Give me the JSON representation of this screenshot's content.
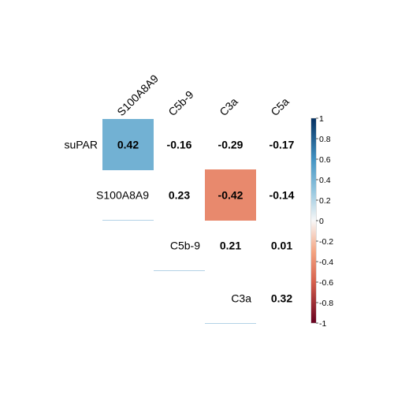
{
  "chart_data": {
    "type": "heatmap",
    "variant": "correlation-matrix-upper",
    "row_labels": [
      "suPAR",
      "S100A8A9",
      "C5b-9",
      "C3a"
    ],
    "col_labels": [
      "S100A8A9",
      "C5b-9",
      "C3a",
      "C5a"
    ],
    "cells": [
      {
        "row": "suPAR",
        "col": "S100A8A9",
        "value": 0.42,
        "label": "0.42",
        "filled": true
      },
      {
        "row": "suPAR",
        "col": "C5b-9",
        "value": -0.16,
        "label": "-0.16",
        "filled": false
      },
      {
        "row": "suPAR",
        "col": "C3a",
        "value": -0.29,
        "label": "-0.29",
        "filled": false
      },
      {
        "row": "suPAR",
        "col": "C5a",
        "value": -0.17,
        "label": "-0.17",
        "filled": false
      },
      {
        "row": "S100A8A9",
        "col": "C5b-9",
        "value": 0.23,
        "label": "0.23",
        "filled": false
      },
      {
        "row": "S100A8A9",
        "col": "C3a",
        "value": -0.42,
        "label": "-0.42",
        "filled": true
      },
      {
        "row": "S100A8A9",
        "col": "C5a",
        "value": -0.14,
        "label": "-0.14",
        "filled": false
      },
      {
        "row": "C5b-9",
        "col": "C3a",
        "value": 0.21,
        "label": "0.21",
        "filled": false
      },
      {
        "row": "C5b-9",
        "col": "C5a",
        "value": 0.01,
        "label": "0.01",
        "filled": false
      },
      {
        "row": "C3a",
        "col": "C5a",
        "value": 0.32,
        "label": "0.32",
        "filled": false
      }
    ],
    "colorbar": {
      "range": [
        -1,
        1
      ],
      "ticks": [
        "1",
        "0.8",
        "0.6",
        "0.4",
        "0.2",
        "0",
        "-0.2",
        "-0.4",
        "-0.6",
        "-0.8",
        "-1"
      ],
      "placement": "right"
    },
    "colors": {
      "negative_end": "#67001F",
      "negative_mid": "#D6604D",
      "negative_light": "#F4A582",
      "neutral": "#F7F7F7",
      "positive_light": "#92C5DE",
      "positive_mid": "#4393C3",
      "positive_end": "#053061",
      "diagonal_line": "#B3D2E6"
    }
  }
}
